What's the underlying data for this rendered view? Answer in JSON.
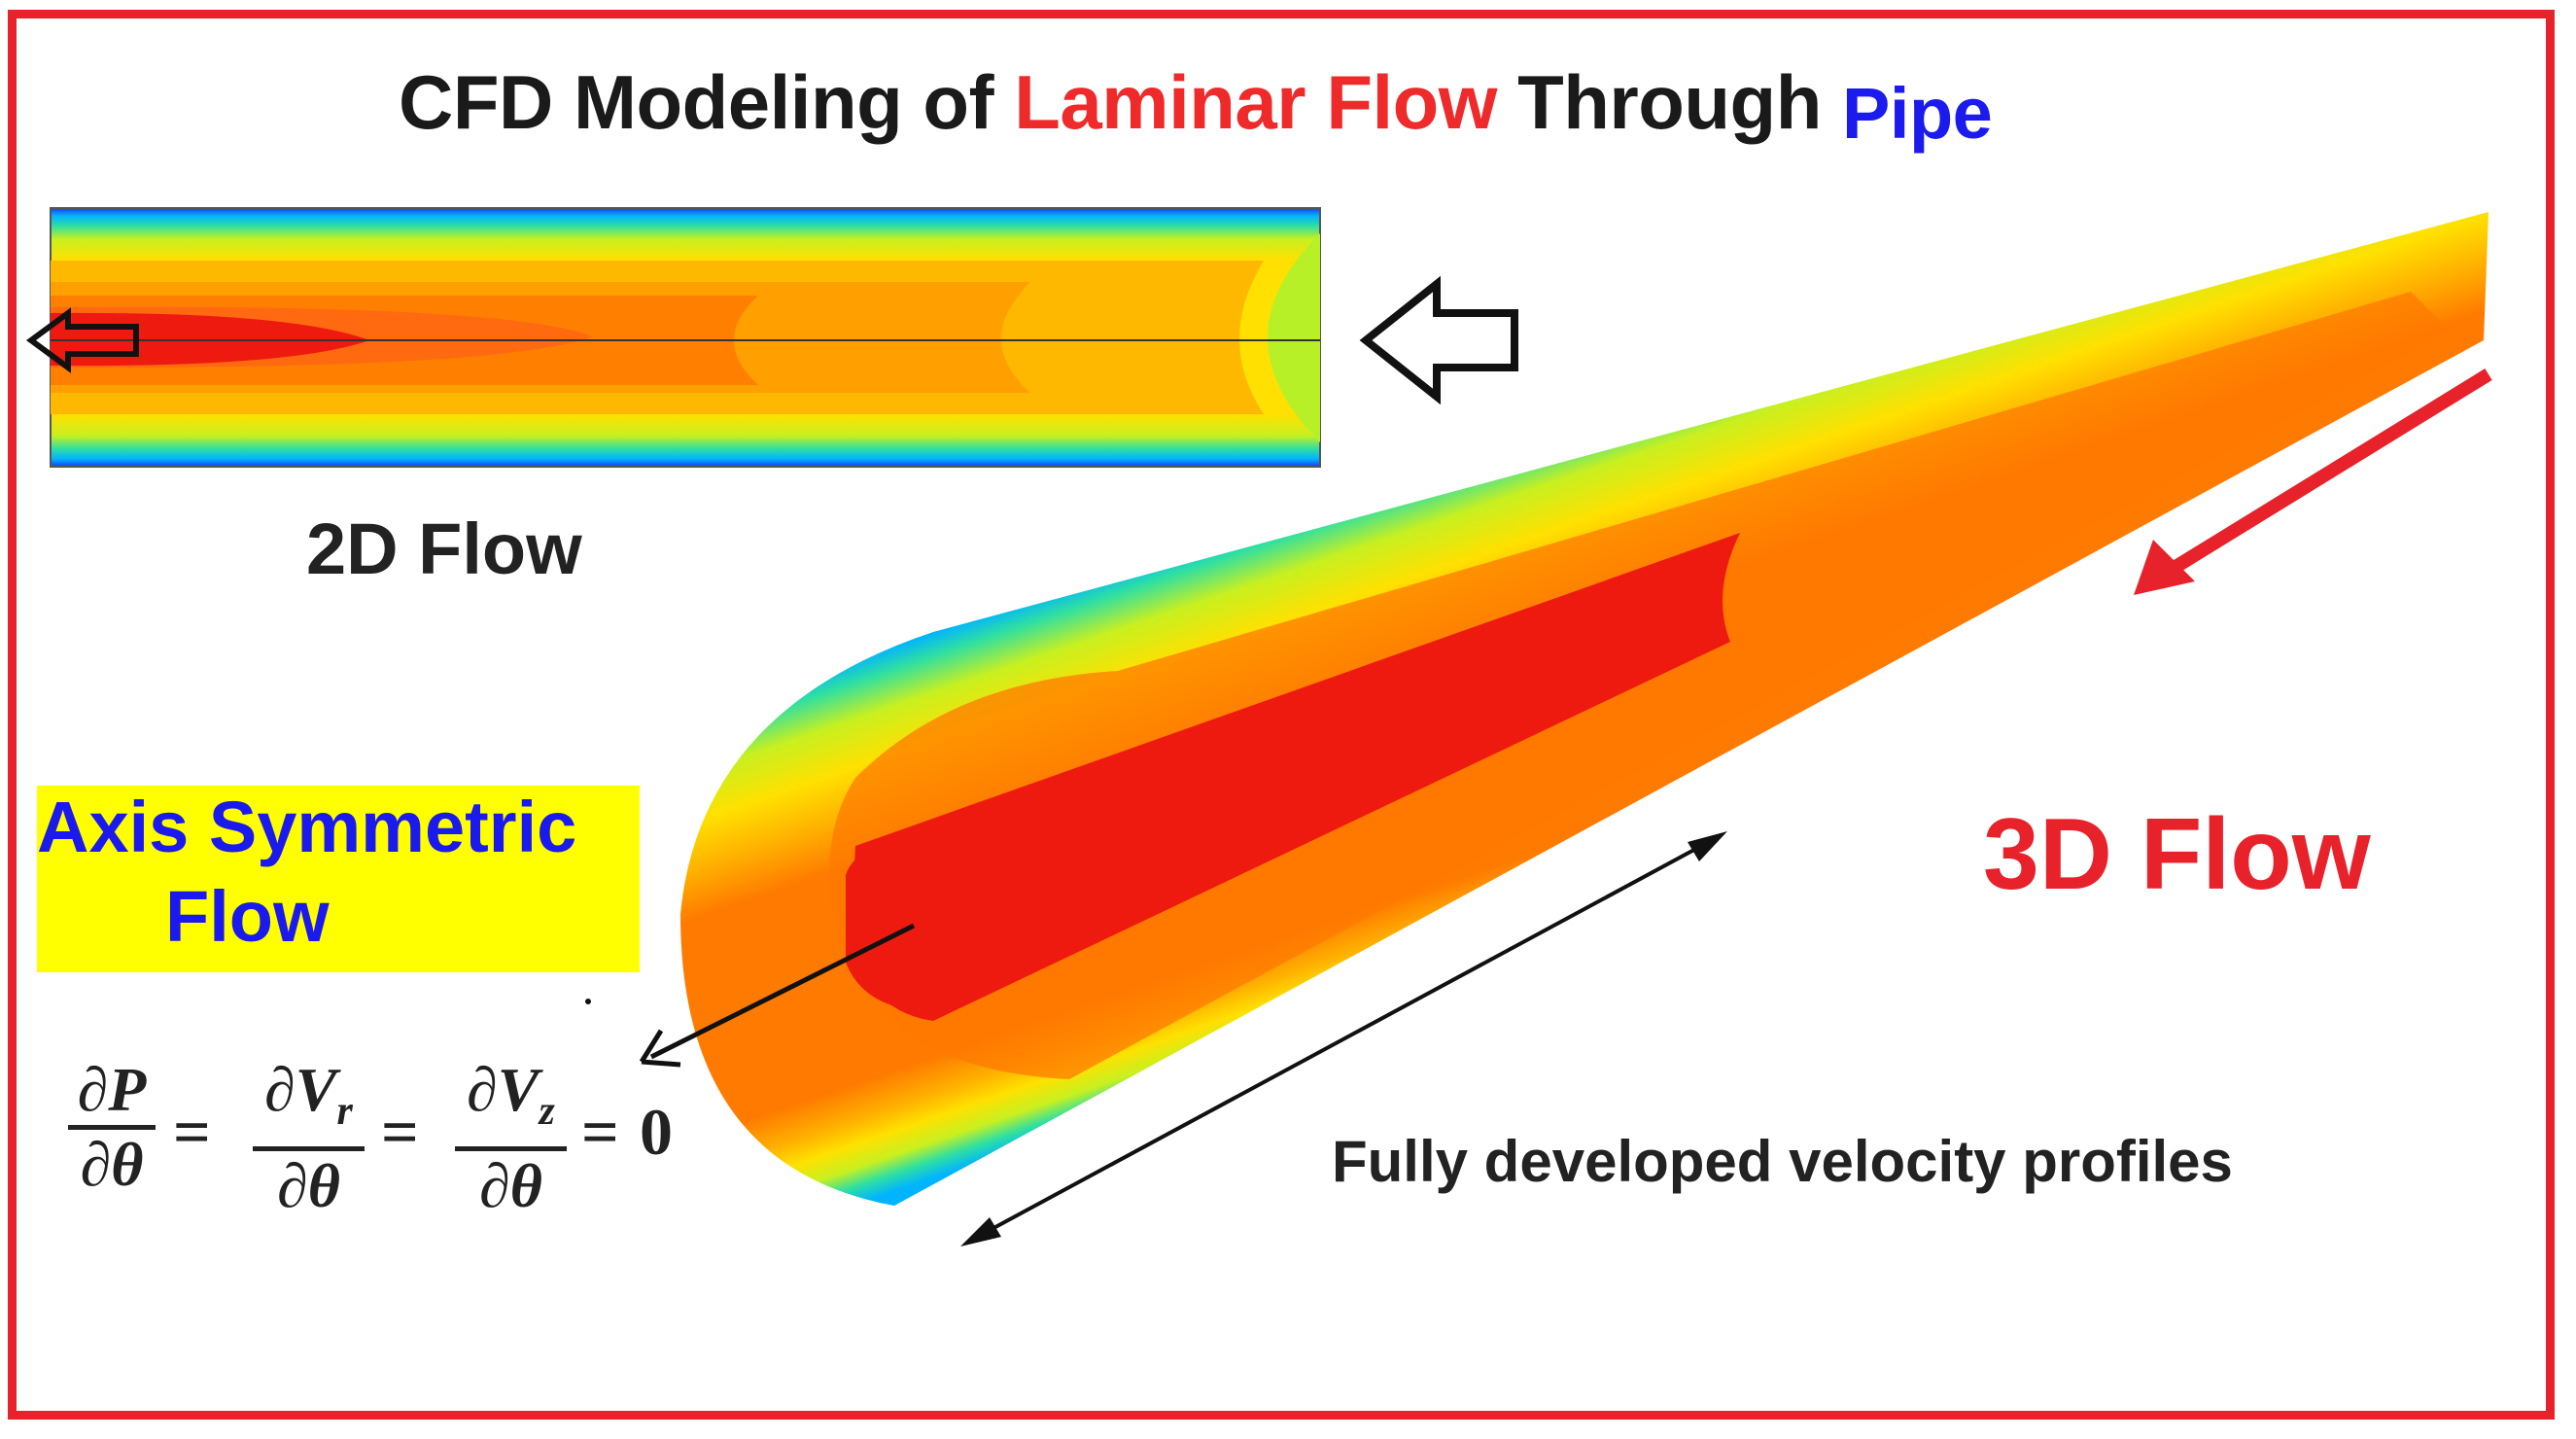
{
  "title": {
    "part1": "CFD Modeling of ",
    "part2": "Laminar Flow",
    "part3": " Through ",
    "part4": "Pipe"
  },
  "labels": {
    "flow2d": "2D Flow",
    "flow3d": "3D Flow",
    "axis_line1": "Axis Symmetric",
    "axis_line2": "Flow",
    "developed": "Fully developed velocity profiles"
  },
  "equation": {
    "f1_num": "∂P",
    "f1_den": "∂θ",
    "f2_num": "∂V",
    "f2_sub": "r",
    "f2_den": "∂θ",
    "f3_num": "∂V",
    "f3_sub": "z",
    "f3_den": "∂θ",
    "eq": "=",
    "zero": "0"
  },
  "colors": {
    "frame": "#e8222b",
    "title_red": "#ee2a2a",
    "title_blue": "#1b1bee",
    "highlight": "#ffff00"
  }
}
